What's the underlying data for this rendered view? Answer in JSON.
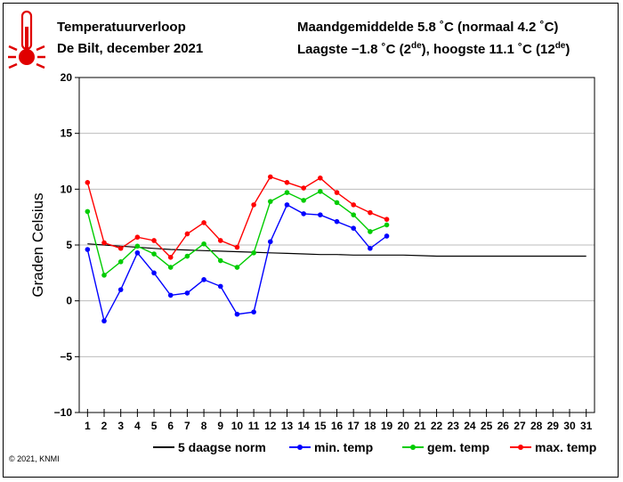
{
  "header": {
    "title": "Temperatuurverloop",
    "location": "De Bilt, december 2021",
    "stats_line1": "Maandgemiddelde 5.8 ˚C (normaal 4.2 ˚C)",
    "stats_line2_a": "Laagste −1.8 ˚C (2",
    "stats_line2_sup_a": "de",
    "stats_line2_b": "), hoogste 11.1 ˚C (12",
    "stats_line2_sup_b": "de",
    "stats_line2_c": ")"
  },
  "icon": "thermometer-icon",
  "copyright": "© 2021, KNMI",
  "chart_data": {
    "type": "line",
    "ylabel": "Graden Celsius",
    "xlabel": "",
    "ylim": [
      -10,
      20
    ],
    "xlim": [
      0.5,
      31.5
    ],
    "yticks": [
      -10,
      -5,
      0,
      5,
      10,
      15,
      20
    ],
    "ytick_labels": [
      "−10",
      "−5",
      "0",
      "5",
      "10",
      "15",
      "20"
    ],
    "xticks": [
      1,
      2,
      3,
      4,
      5,
      6,
      7,
      8,
      9,
      10,
      11,
      12,
      13,
      14,
      15,
      16,
      17,
      18,
      19,
      20,
      21,
      22,
      23,
      24,
      25,
      26,
      27,
      28,
      29,
      30,
      31
    ],
    "grid": true,
    "legend_placement": "bottom",
    "series": [
      {
        "name": "5 daagse norm",
        "color": "#000000",
        "markers": false,
        "x": [
          1,
          2,
          3,
          4,
          5,
          6,
          7,
          8,
          9,
          10,
          11,
          12,
          13,
          14,
          15,
          16,
          17,
          18,
          19,
          20,
          21,
          22,
          23,
          24,
          25,
          26,
          27,
          28,
          29,
          30,
          31
        ],
        "values": [
          5.1,
          5.0,
          4.9,
          4.8,
          4.7,
          4.6,
          4.55,
          4.5,
          4.45,
          4.4,
          4.35,
          4.3,
          4.25,
          4.2,
          4.15,
          4.15,
          4.1,
          4.1,
          4.1,
          4.1,
          4.05,
          4.0,
          4.0,
          4.0,
          4.0,
          4.0,
          4.0,
          4.0,
          4.0,
          4.0,
          4.0
        ]
      },
      {
        "name": "min. temp",
        "color": "#0000ff",
        "markers": true,
        "x": [
          1,
          2,
          3,
          4,
          5,
          6,
          7,
          8,
          9,
          10,
          11,
          12,
          13,
          14,
          15,
          16,
          17,
          18,
          19
        ],
        "values": [
          4.6,
          -1.8,
          1.0,
          4.3,
          2.5,
          0.5,
          0.7,
          1.9,
          1.3,
          -1.2,
          -1.0,
          5.3,
          8.6,
          7.8,
          7.7,
          7.1,
          6.5,
          4.7,
          5.8
        ]
      },
      {
        "name": "gem. temp",
        "color": "#00cc00",
        "markers": true,
        "x": [
          1,
          2,
          3,
          4,
          5,
          6,
          7,
          8,
          9,
          10,
          11,
          12,
          13,
          14,
          15,
          16,
          17,
          18,
          19
        ],
        "values": [
          8.0,
          2.3,
          3.5,
          4.9,
          4.2,
          3.0,
          4.0,
          5.1,
          3.6,
          3.0,
          4.3,
          8.9,
          9.7,
          9.0,
          9.8,
          8.8,
          7.7,
          6.2,
          6.8
        ]
      },
      {
        "name": "max. temp",
        "color": "#ff0000",
        "markers": true,
        "x": [
          1,
          2,
          3,
          4,
          5,
          6,
          7,
          8,
          9,
          10,
          11,
          12,
          13,
          14,
          15,
          16,
          17,
          18,
          19
        ],
        "values": [
          10.6,
          5.2,
          4.7,
          5.7,
          5.4,
          3.9,
          6.0,
          7.0,
          5.4,
          4.8,
          8.6,
          11.1,
          10.6,
          10.1,
          11.0,
          9.7,
          8.6,
          7.9,
          7.3
        ]
      }
    ]
  }
}
